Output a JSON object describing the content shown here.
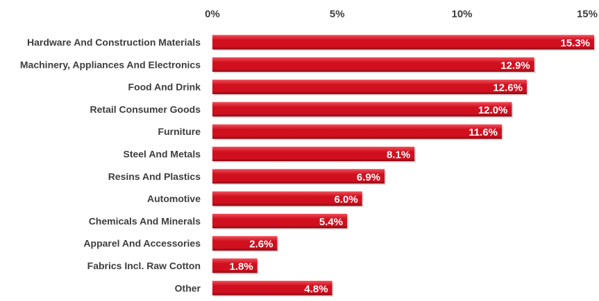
{
  "chart_data": {
    "type": "bar",
    "orientation": "horizontal",
    "categories": [
      "Hardware And Construction Materials",
      "Machinery, Appliances And Electronics",
      "Food And Drink",
      "Retail Consumer Goods",
      "Furniture",
      "Steel And Metals",
      "Resins And Plastics",
      "Automotive",
      "Chemicals And Minerals",
      "Apparel And Accessories",
      "Fabrics Incl. Raw Cotton",
      "Other"
    ],
    "values": [
      15.3,
      12.9,
      12.6,
      12.0,
      11.6,
      8.1,
      6.9,
      6.0,
      5.4,
      2.6,
      1.8,
      4.8
    ],
    "value_labels": [
      "15.3%",
      "12.9%",
      "12.6%",
      "12.0%",
      "11.6%",
      "8.1%",
      "6.9%",
      "6.0%",
      "5.4%",
      "2.6%",
      "1.8%",
      "4.8%"
    ],
    "x_ticks": [
      0,
      5,
      10,
      15
    ],
    "x_tick_labels": [
      "0%",
      "5%",
      "10%",
      "15%"
    ],
    "xlim": [
      0,
      15.3
    ],
    "axis_position": "top",
    "grid": false,
    "legend": false,
    "title": "",
    "xlabel": "",
    "ylabel": "",
    "colors": {
      "bar": "#d0101f",
      "bar_highlight": "#f0505a",
      "bar_shadow": "#8a0a14",
      "bar_label": "#ffffff",
      "text": "#3d3d3d"
    }
  }
}
